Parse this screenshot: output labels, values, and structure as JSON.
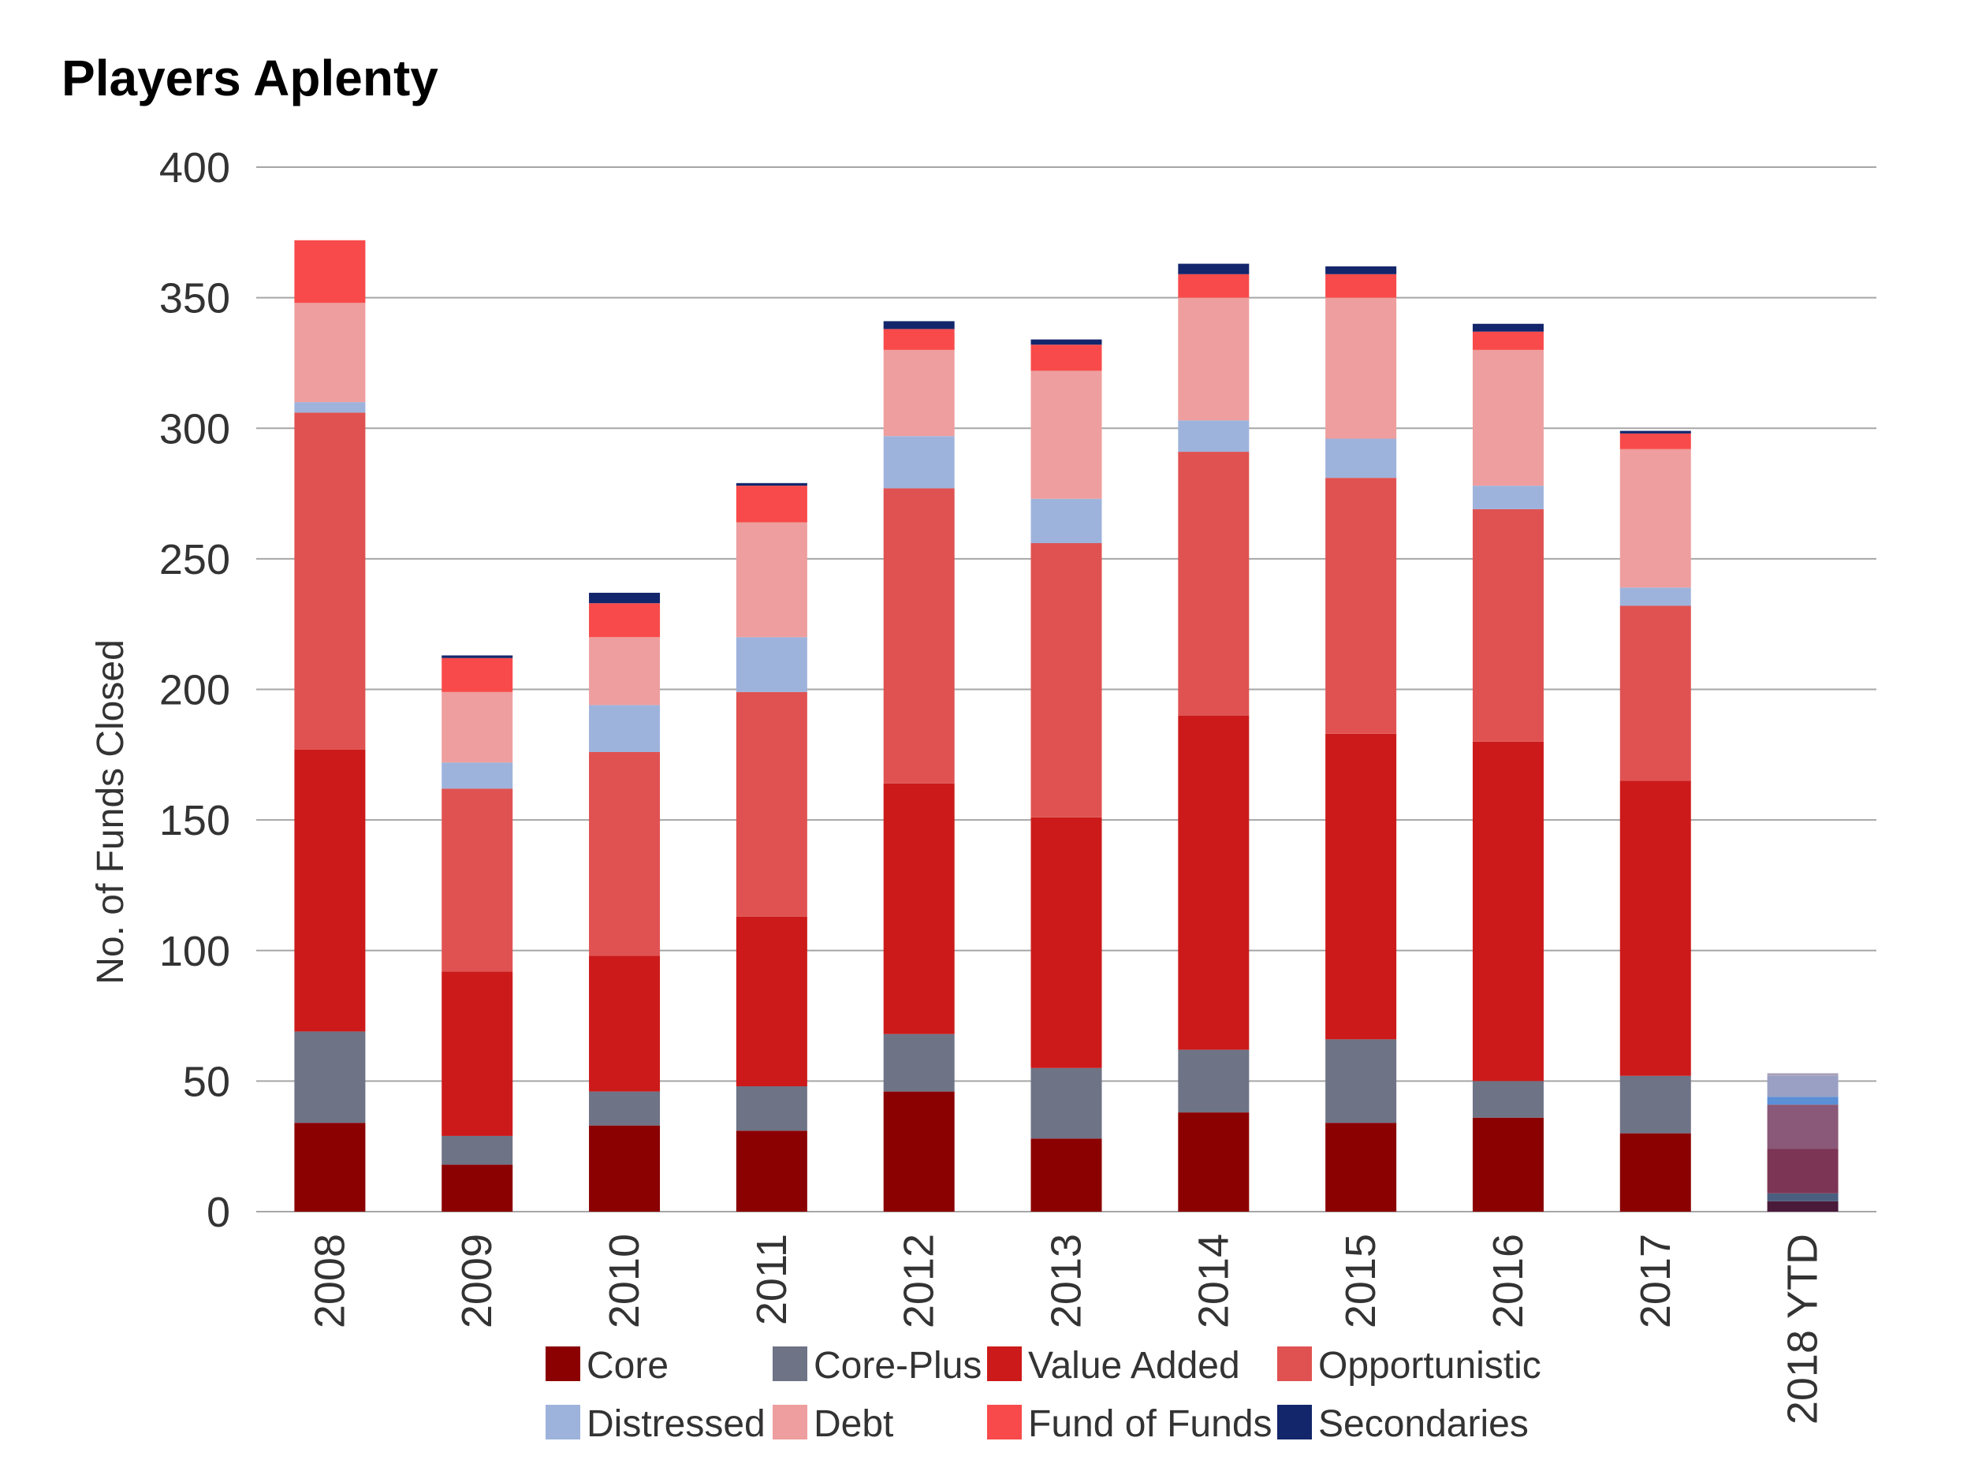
{
  "chart_data": {
    "type": "bar",
    "stacked": true,
    "title": "Players Aplenty",
    "xlabel": "",
    "ylabel": "No. of Funds Closed",
    "ylim": [
      0,
      400
    ],
    "yticks": [
      0,
      50,
      100,
      150,
      200,
      250,
      300,
      350,
      400
    ],
    "grid": true,
    "legend_position": "bottom",
    "categories": [
      "2008",
      "2009",
      "2010",
      "2011",
      "2012",
      "2013",
      "2014",
      "2015",
      "2016",
      "2017",
      "2018 YTD"
    ],
    "series": [
      {
        "name": "Core",
        "color": "#8b0000",
        "ytd_color": "#4a1a3a",
        "values": [
          34,
          18,
          33,
          31,
          46,
          28,
          38,
          34,
          36,
          30,
          4
        ]
      },
      {
        "name": "Core-Plus",
        "color": "#6e7386",
        "ytd_color": "#4a5f80",
        "values": [
          35,
          11,
          13,
          17,
          22,
          27,
          24,
          32,
          14,
          22,
          3
        ]
      },
      {
        "name": "Value Added",
        "color": "#cc1a1a",
        "ytd_color": "#7d3555",
        "values": [
          108,
          63,
          52,
          65,
          96,
          96,
          128,
          117,
          130,
          113,
          17
        ]
      },
      {
        "name": "Opportunistic",
        "color": "#e05252",
        "ytd_color": "#8a5878",
        "values": [
          129,
          70,
          78,
          86,
          113,
          105,
          101,
          98,
          89,
          67,
          17
        ]
      },
      {
        "name": "Distressed",
        "color": "#9eb3dc",
        "ytd_color": "#5b8fd6",
        "values": [
          4,
          10,
          18,
          21,
          20,
          17,
          12,
          15,
          9,
          7,
          3
        ]
      },
      {
        "name": "Debt",
        "color": "#ee9e9e",
        "ytd_color": "#9aa0c4",
        "values": [
          38,
          27,
          26,
          44,
          33,
          49,
          47,
          54,
          52,
          53,
          8
        ]
      },
      {
        "name": "Fund of Funds",
        "color": "#f84a4a",
        "ytd_color": "#a8a0b8",
        "values": [
          24,
          13,
          13,
          14,
          8,
          10,
          9,
          9,
          7,
          6,
          1
        ]
      },
      {
        "name": "Secondaries",
        "color": "#13266b",
        "ytd_color": "#303060",
        "values": [
          0,
          1,
          4,
          1,
          3,
          2,
          4,
          3,
          3,
          1,
          0
        ]
      }
    ]
  }
}
